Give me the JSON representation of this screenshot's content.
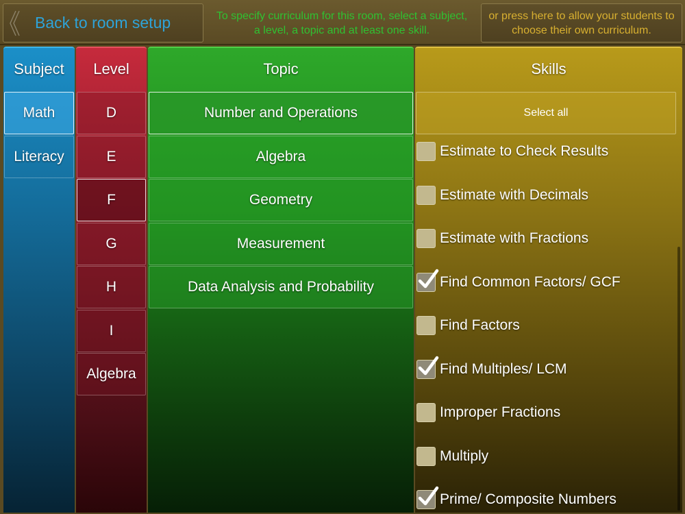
{
  "topbar": {
    "back_label": "Back to room setup",
    "instructions": "To specify curriculum for this room, select a subject, a level, a topic and at least one skill.",
    "own_curriculum_label": "or press here to allow your students to choose their own curriculum."
  },
  "subject": {
    "header": "Subject",
    "items": [
      {
        "label": "Math",
        "selected": true
      },
      {
        "label": "Literacy",
        "selected": false
      }
    ]
  },
  "level": {
    "header": "Level",
    "items": [
      {
        "label": "D",
        "selected": false
      },
      {
        "label": "E",
        "selected": false
      },
      {
        "label": "F",
        "selected": true
      },
      {
        "label": "G",
        "selected": false
      },
      {
        "label": "H",
        "selected": false
      },
      {
        "label": "I",
        "selected": false
      },
      {
        "label": "Algebra",
        "selected": false
      }
    ]
  },
  "topic": {
    "header": "Topic",
    "items": [
      {
        "label": "Number and Operations",
        "selected": true
      },
      {
        "label": "Algebra",
        "selected": false
      },
      {
        "label": "Geometry",
        "selected": false
      },
      {
        "label": "Measurement",
        "selected": false
      },
      {
        "label": "Data Analysis and Probability",
        "selected": false
      }
    ]
  },
  "skills": {
    "header": "Skills",
    "select_all_label": "Select all",
    "items": [
      {
        "label": "Estimate to Check Results",
        "checked": false
      },
      {
        "label": "Estimate with Decimals",
        "checked": false
      },
      {
        "label": "Estimate with Fractions",
        "checked": false
      },
      {
        "label": "Find Common Factors/ GCF",
        "checked": true
      },
      {
        "label": "Find Factors",
        "checked": false
      },
      {
        "label": "Find Multiples/ LCM",
        "checked": true
      },
      {
        "label": "Improper Fractions",
        "checked": false
      },
      {
        "label": "Multiply",
        "checked": false
      },
      {
        "label": "Prime/ Composite Numbers",
        "checked": true
      }
    ]
  },
  "colors": {
    "subject": "#1b8fc8",
    "level": "#c62a3c",
    "topic": "#2ea82a",
    "skills": "#b89a1a",
    "back_text": "#2ea3d8",
    "instructions_text": "#2fc132",
    "own_text": "#d8b030"
  }
}
